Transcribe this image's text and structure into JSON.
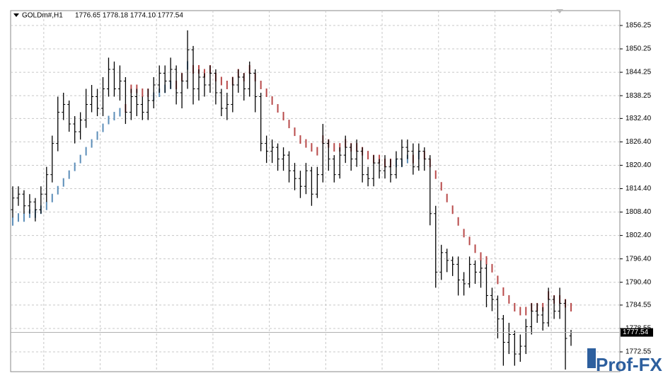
{
  "header": {
    "symbol": "GOLDm#,H1",
    "ohlc": "1776.65 1778.18 1774.10 1777.54"
  },
  "logo": "Prof-FX",
  "chart_data": {
    "type": "ohlc",
    "open": [
      1809,
      1812,
      1813,
      1810,
      1811,
      1809,
      1813,
      1818,
      1826,
      1834,
      1836,
      1831,
      1829,
      1832,
      1836,
      1838,
      1835,
      1840,
      1845,
      1840,
      1842,
      1834,
      1838,
      1836,
      1834,
      1837,
      1841,
      1844,
      1842,
      1845,
      1839,
      1842,
      1850,
      1840,
      1843,
      1841,
      1844,
      1839,
      1835,
      1836,
      1841,
      1843,
      1840,
      1844,
      1838,
      1826,
      1824,
      1825,
      1822,
      1823,
      1819,
      1817,
      1815,
      1819,
      1813,
      1818,
      1826,
      1822,
      1818,
      1823,
      1825,
      1822,
      1824,
      1818,
      1817,
      1821,
      1819,
      1820,
      1818,
      1822,
      1825,
      1824,
      1820,
      1824,
      1822,
      1808,
      1793,
      1798,
      1796,
      1795,
      1791,
      1790,
      1795,
      1793,
      1794,
      1787,
      1786,
      1781,
      1775,
      1777,
      1772,
      1774,
      1779,
      1783,
      1782,
      1780,
      1786,
      1783,
      1785,
      1776.65
    ],
    "high": [
      1815,
      1815,
      1814,
      1813,
      1812,
      1815,
      1820,
      1828,
      1838,
      1839,
      1837,
      1833,
      1834,
      1840,
      1841,
      1840,
      1843,
      1848,
      1847,
      1846,
      1843,
      1840,
      1840,
      1838,
      1840,
      1843,
      1846,
      1846,
      1848,
      1846,
      1844,
      1855,
      1851,
      1845,
      1844,
      1846,
      1845,
      1840,
      1839,
      1843,
      1845,
      1844,
      1847,
      1845,
      1839,
      1828,
      1827,
      1826,
      1825,
      1824,
      1821,
      1819,
      1821,
      1820,
      1820,
      1831,
      1827,
      1823,
      1825,
      1828,
      1826,
      1827,
      1825,
      1820,
      1823,
      1822,
      1823,
      1822,
      1824,
      1827,
      1827,
      1826,
      1826,
      1825,
      1823,
      1810,
      1800,
      1799,
      1797,
      1797,
      1793,
      1797,
      1796,
      1796,
      1795,
      1789,
      1787,
      1782,
      1780,
      1778,
      1777,
      1781,
      1785,
      1785,
      1784,
      1789,
      1787,
      1789,
      1786,
      1778.18
    ],
    "low": [
      1807,
      1810,
      1808,
      1808,
      1806,
      1808,
      1811,
      1816,
      1824,
      1832,
      1829,
      1826,
      1827,
      1830,
      1834,
      1833,
      1833,
      1838,
      1838,
      1837,
      1831,
      1832,
      1833,
      1832,
      1832,
      1835,
      1839,
      1839,
      1840,
      1836,
      1835,
      1840,
      1836,
      1837,
      1838,
      1839,
      1836,
      1833,
      1832,
      1834,
      1839,
      1837,
      1838,
      1834,
      1824,
      1821,
      1821,
      1819,
      1819,
      1816,
      1814,
      1812,
      1813,
      1810,
      1812,
      1816,
      1819,
      1816,
      1817,
      1821,
      1819,
      1820,
      1816,
      1815,
      1815,
      1817,
      1817,
      1816,
      1817,
      1820,
      1822,
      1818,
      1819,
      1819,
      1805,
      1789,
      1791,
      1793,
      1792,
      1787,
      1787,
      1789,
      1790,
      1789,
      1784,
      1783,
      1776,
      1769,
      1772,
      1769,
      1770,
      1772,
      1777,
      1780,
      1778,
      1779,
      1781,
      1781,
      1768,
      1774.1
    ],
    "close": [
      1812,
      1813,
      1810,
      1811,
      1809,
      1813,
      1818,
      1826,
      1834,
      1836,
      1831,
      1829,
      1832,
      1836,
      1838,
      1835,
      1840,
      1845,
      1840,
      1842,
      1834,
      1838,
      1836,
      1834,
      1837,
      1841,
      1844,
      1842,
      1845,
      1839,
      1842,
      1850,
      1840,
      1843,
      1841,
      1844,
      1839,
      1835,
      1836,
      1841,
      1843,
      1840,
      1844,
      1838,
      1826,
      1824,
      1825,
      1822,
      1823,
      1819,
      1817,
      1815,
      1819,
      1813,
      1818,
      1826,
      1822,
      1818,
      1823,
      1825,
      1822,
      1824,
      1818,
      1817,
      1821,
      1819,
      1820,
      1818,
      1822,
      1825,
      1824,
      1820,
      1824,
      1822,
      1808,
      1793,
      1798,
      1796,
      1795,
      1791,
      1790,
      1795,
      1793,
      1794,
      1787,
      1786,
      1781,
      1775,
      1777,
      1772,
      1774,
      1779,
      1783,
      1782,
      1780,
      1786,
      1783,
      1785,
      1776,
      1777.54
    ],
    "color": "#000000",
    "indicator": {
      "up_color": "#5b8db8",
      "down_color": "#b84a4a",
      "values": [
        1806,
        1807,
        1807,
        1808,
        1808,
        1809,
        1810,
        1812,
        1814,
        1816,
        1818,
        1820,
        1822,
        1824,
        1826,
        1828,
        1830,
        1832,
        1833,
        1834,
        1835,
        1840,
        1840,
        1839,
        1839,
        1838,
        1839,
        1840,
        1841,
        1841,
        1843,
        1846,
        1845,
        1845,
        1844,
        1845,
        1843,
        1842,
        1841,
        1842,
        1844,
        1843,
        1845,
        1843,
        1841,
        1839,
        1837,
        1835,
        1833,
        1831,
        1829,
        1827,
        1826,
        1825,
        1824,
        1827,
        1826,
        1825,
        1825,
        1826,
        1825,
        1825,
        1824,
        1823,
        1822,
        1822,
        1821,
        1821,
        1821,
        1821,
        1822,
        1822,
        1823,
        1823,
        1821,
        1818,
        1815,
        1812,
        1809,
        1806,
        1803,
        1801,
        1799,
        1797,
        1796,
        1794,
        1791,
        1788,
        1786,
        1784,
        1783,
        1783,
        1784,
        1784,
        1784,
        1787,
        1786,
        1786,
        1785,
        1784
      ]
    },
    "ylim": [
      1767.47,
      1860.06
    ],
    "yticks": [
      1856.25,
      1850.25,
      1844.25,
      1838.25,
      {
        "value": 1832.4,
        "label": "1832.40"
      },
      {
        "value": 1826.4,
        "label": "1826.40"
      },
      {
        "value": 1820.4,
        "label": "1820.40"
      },
      {
        "value": 1814.4,
        "label": "1814.40"
      },
      {
        "value": 1808.4,
        "label": "1808.40"
      },
      {
        "value": 1802.4,
        "label": "1802.40"
      },
      {
        "value": 1796.4,
        "label": "1796.40"
      },
      {
        "value": 1790.4,
        "label": "1790.40"
      },
      1784.55,
      1778.55,
      1772.55
    ],
    "grid": true
  }
}
